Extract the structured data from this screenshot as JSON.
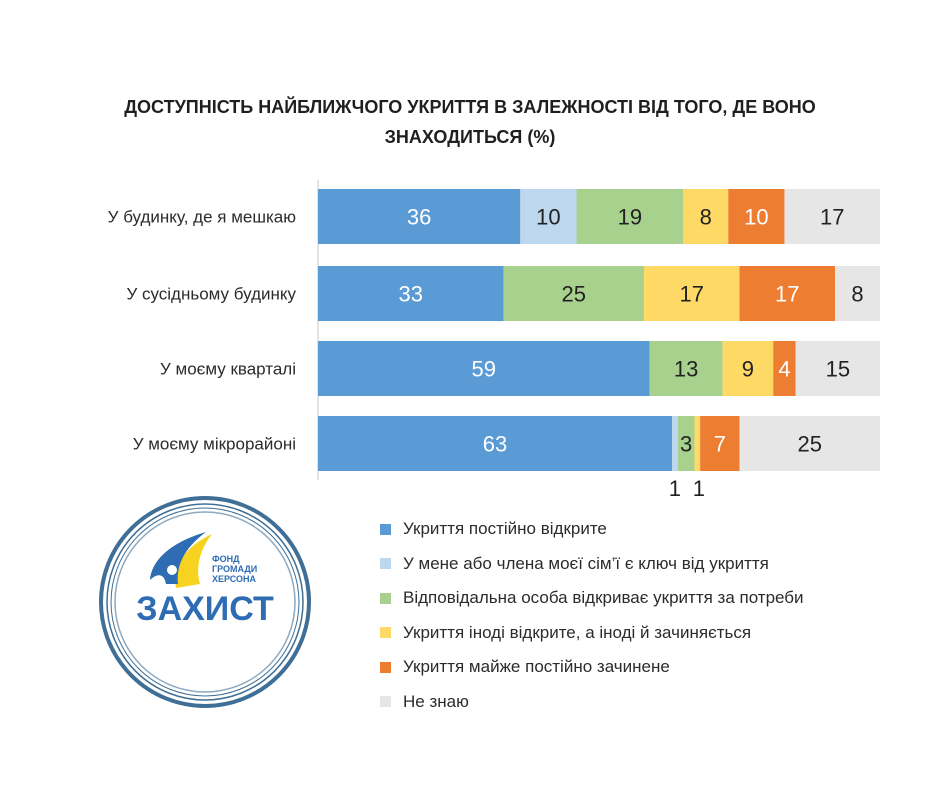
{
  "chart_data": {
    "type": "bar",
    "orientation": "horizontal",
    "stacked": true,
    "title": "ДОСТУПНІСТЬ НАЙБЛИЖЧОГО УКРИТТЯ В ЗАЛЕЖНОСТІ ВІД ТОГО, ДЕ ВОНО ЗНАХОДИТЬСЯ (%)",
    "title_lines": [
      "ДОСТУПНІСТЬ НАЙБЛИЖЧОГО УКРИТТЯ В ЗАЛЕЖНОСТІ ВІД ТОГО, ДЕ ВОНО",
      "ЗНАХОДИТЬСЯ (%)"
    ],
    "categories": [
      "У будинку, де я мешкаю",
      "У сусідньому будинку",
      "У моєму кварталі",
      "У моєму мікрорайоні"
    ],
    "series": [
      {
        "name": "Укриття постійно відкрите",
        "color": "#5b9bd5",
        "values": [
          36,
          33,
          59,
          63
        ]
      },
      {
        "name": "У мене або члена моєї сім’ї є ключ від укриття",
        "color": "#bdd7ee",
        "values": [
          10,
          0,
          0,
          1
        ]
      },
      {
        "name": "Відповідальна особа відкриває укриття за потреби",
        "color": "#a9d18e",
        "values": [
          19,
          25,
          13,
          3
        ]
      },
      {
        "name": "Укриття іноді відкрите, а іноді й зачиняється",
        "color": "#ffd966",
        "values": [
          8,
          17,
          9,
          1
        ]
      },
      {
        "name": "Укриття майже постійно зачинене",
        "color": "#ed7d31",
        "values": [
          10,
          17,
          4,
          7
        ]
      },
      {
        "name": "Не знаю",
        "color": "#e7e6e6",
        "values": [
          17,
          8,
          15,
          25
        ]
      }
    ],
    "xlim": [
      0,
      100
    ],
    "legend_position": "bottom-right",
    "grid": false
  },
  "logo": {
    "tagline_lines": [
      "ФОНД",
      "ГРОМАДИ",
      "ХЕРСОНА"
    ],
    "name": "ЗАХИСТ",
    "colors": {
      "blue": "#2e6db4",
      "yellow": "#f7d21e",
      "ring": "#3f6f96"
    }
  }
}
